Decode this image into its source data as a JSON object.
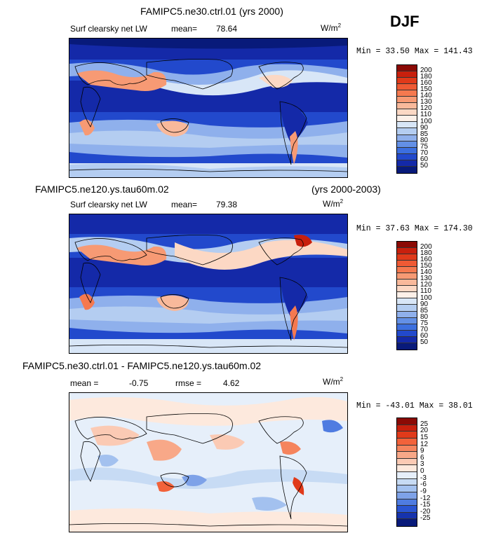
{
  "season": "DJF",
  "panels": [
    {
      "title": "FAMIPC5.ne30.ctrl.01 (yrs 2000)",
      "title_right": "",
      "variable": "Surf clearsky net LW",
      "stat1_label": "mean=",
      "stat1_value": "78.64",
      "stat2_label": "",
      "stat2_value": "",
      "units": "W/m",
      "units_exp": "2",
      "minmax": "Min =   33.50 Max = 141.43",
      "colorbar": {
        "levels": [
          "200",
          "180",
          "160",
          "150",
          "140",
          "130",
          "120",
          "110",
          "100",
          "90",
          "85",
          "80",
          "75",
          "70",
          "60",
          "50"
        ],
        "colors": [
          "#8b0a05",
          "#c8200d",
          "#e03a1a",
          "#ef5a34",
          "#f5794f",
          "#f79a74",
          "#f9b99b",
          "#fcd8c4",
          "#fdf0e8",
          "#d8e6f7",
          "#b4cdf1",
          "#8fb0ec",
          "#6390e6",
          "#3c6fdf",
          "#2249cc",
          "#1429a8",
          "#081a7a"
        ]
      }
    },
    {
      "title": "FAMIPC5.ne120.ys.tau60m.02",
      "title_right": "(yrs 2000-2003)",
      "variable": "Surf clearsky net LW",
      "stat1_label": "mean=",
      "stat1_value": "79.38",
      "stat2_label": "",
      "stat2_value": "",
      "units": "W/m",
      "units_exp": "2",
      "minmax": "Min =   37.63 Max = 174.30",
      "colorbar": {
        "levels": [
          "200",
          "180",
          "160",
          "150",
          "140",
          "130",
          "120",
          "110",
          "100",
          "90",
          "85",
          "80",
          "75",
          "70",
          "60",
          "50"
        ],
        "colors": [
          "#8b0a05",
          "#c8200d",
          "#e03a1a",
          "#ef5a34",
          "#f5794f",
          "#f79a74",
          "#f9b99b",
          "#fcd8c4",
          "#fdf0e8",
          "#d8e6f7",
          "#b4cdf1",
          "#8fb0ec",
          "#6390e6",
          "#3c6fdf",
          "#2249cc",
          "#1429a8",
          "#081a7a"
        ]
      }
    },
    {
      "title": "FAMIPC5.ne30.ctrl.01 - FAMIPC5.ne120.ys.tau60m.02",
      "title_right": "",
      "variable": "",
      "stat1_label": "mean =",
      "stat1_value": "-0.75",
      "stat2_label": "rmse =",
      "stat2_value": "4.62",
      "units": "W/m",
      "units_exp": "2",
      "minmax": "Min = -43.01 Max =  38.01",
      "colorbar": {
        "levels": [
          "25",
          "20",
          "15",
          "12",
          "9",
          "6",
          "3",
          "0",
          "-3",
          "-6",
          "-9",
          "-12",
          "-15",
          "-20",
          "-25"
        ],
        "colors": [
          "#8b0a05",
          "#c8200d",
          "#e03a1a",
          "#f2623a",
          "#f5845d",
          "#f8a888",
          "#fbcab4",
          "#fde9dd",
          "#e6effa",
          "#c7dbf4",
          "#a3c1ef",
          "#7ea2e8",
          "#4f7ce1",
          "#2a55d2",
          "#1633ad",
          "#081a7a"
        ]
      }
    }
  ],
  "chart_data": [
    {
      "type": "heatmap",
      "title": "FAMIPC5.ne30.ctrl.01 (yrs 2000)",
      "variable": "Surf clearsky net LW",
      "units": "W/m2",
      "season": "DJF",
      "mean": 78.64,
      "min": 33.5,
      "max": 141.43,
      "contour_levels": [
        50,
        60,
        70,
        75,
        80,
        85,
        90,
        100,
        110,
        120,
        130,
        140,
        150,
        160,
        180,
        200
      ]
    },
    {
      "type": "heatmap",
      "title": "FAMIPC5.ne120.ys.tau60m.02 (yrs 2000-2003)",
      "variable": "Surf clearsky net LW",
      "units": "W/m2",
      "season": "DJF",
      "mean": 79.38,
      "min": 37.63,
      "max": 174.3,
      "contour_levels": [
        50,
        60,
        70,
        75,
        80,
        85,
        90,
        100,
        110,
        120,
        130,
        140,
        150,
        160,
        180,
        200
      ]
    },
    {
      "type": "heatmap",
      "title": "FAMIPC5.ne30.ctrl.01 - FAMIPC5.ne120.ys.tau60m.02",
      "units": "W/m2",
      "season": "DJF",
      "mean": -0.75,
      "rmse": 4.62,
      "min": -43.01,
      "max": 38.01,
      "contour_levels": [
        -25,
        -20,
        -15,
        -12,
        -9,
        -6,
        -3,
        0,
        3,
        6,
        9,
        12,
        15,
        20,
        25
      ]
    }
  ]
}
